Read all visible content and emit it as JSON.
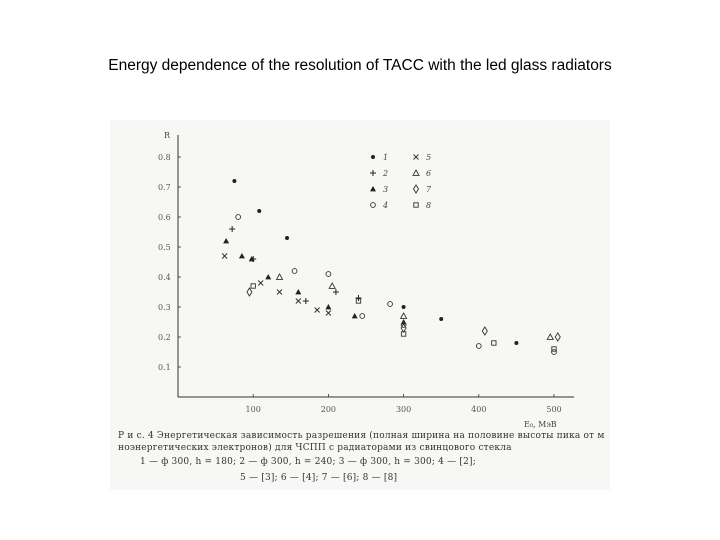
{
  "slide": {
    "title": "Energy dependence of the resolution of TACC with the led glass radiators"
  },
  "caption": {
    "line1": "Р и с. 4 Энергетическая зависимость разрешения (полная ширина на половине высоты пика от м",
    "line2": "ноэнергетических электронов) для ЧСПП с радиаторами из свинцового стекла",
    "line3": "1 — ф 300, h = 180; 2 — ф 300, h = 240; 3 — ф 300, h = 300; 4 — [2];",
    "line4": "5 — [3]; 6 — [4]; 7 — [6]; 8 — [8]"
  },
  "chart_data": {
    "type": "scatter",
    "ylabel": "R",
    "xlabel": "E₀, МэВ",
    "xlim": [
      0,
      540
    ],
    "ylim": [
      0,
      0.9
    ],
    "x_ticks": [
      100,
      200,
      300,
      400,
      500
    ],
    "y_ticks": [
      0.1,
      0.2,
      0.3,
      0.4,
      0.5,
      0.6,
      0.7,
      0.8
    ],
    "grid": false,
    "legend_position": "top-center",
    "series": [
      {
        "name": "1",
        "marker": "dot",
        "points": [
          [
            75,
            0.72
          ],
          [
            108,
            0.62
          ],
          [
            145,
            0.53
          ],
          [
            300,
            0.3
          ],
          [
            350,
            0.26
          ],
          [
            450,
            0.18
          ]
        ]
      },
      {
        "name": "2",
        "marker": "plus",
        "points": [
          [
            72,
            0.56
          ],
          [
            100,
            0.46
          ],
          [
            170,
            0.32
          ],
          [
            210,
            0.35
          ],
          [
            240,
            0.33
          ]
        ]
      },
      {
        "name": "3",
        "marker": "triangle-filled",
        "points": [
          [
            64,
            0.52
          ],
          [
            85,
            0.47
          ],
          [
            98,
            0.46
          ],
          [
            120,
            0.4
          ],
          [
            160,
            0.35
          ],
          [
            200,
            0.3
          ],
          [
            235,
            0.27
          ],
          [
            300,
            0.25
          ]
        ]
      },
      {
        "name": "4",
        "marker": "circle",
        "points": [
          [
            80,
            0.6
          ],
          [
            155,
            0.42
          ],
          [
            200,
            0.41
          ],
          [
            245,
            0.27
          ],
          [
            282,
            0.31
          ],
          [
            300,
            0.24
          ],
          [
            400,
            0.17
          ],
          [
            500,
            0.15
          ]
        ]
      },
      {
        "name": "5",
        "marker": "cross",
        "points": [
          [
            62,
            0.47
          ],
          [
            110,
            0.38
          ],
          [
            135,
            0.35
          ],
          [
            160,
            0.32
          ],
          [
            185,
            0.29
          ],
          [
            200,
            0.28
          ]
        ]
      },
      {
        "name": "6",
        "marker": "triangle-open",
        "points": [
          [
            135,
            0.4
          ],
          [
            205,
            0.37
          ],
          [
            300,
            0.27
          ],
          [
            495,
            0.2
          ]
        ]
      },
      {
        "name": "7",
        "marker": "diamond",
        "points": [
          [
            95,
            0.35
          ],
          [
            300,
            0.23
          ],
          [
            408,
            0.22
          ],
          [
            505,
            0.2
          ]
        ]
      },
      {
        "name": "8",
        "marker": "square",
        "points": [
          [
            100,
            0.37
          ],
          [
            240,
            0.32
          ],
          [
            300,
            0.21
          ],
          [
            420,
            0.18
          ],
          [
            500,
            0.16
          ]
        ]
      }
    ]
  }
}
